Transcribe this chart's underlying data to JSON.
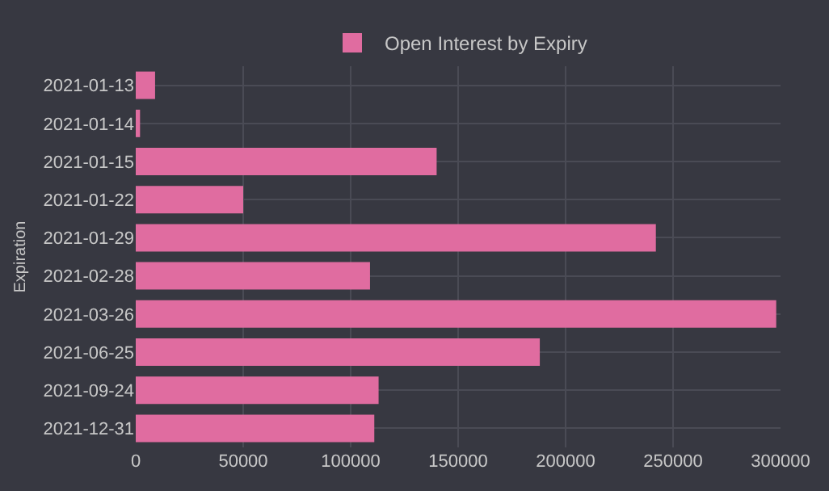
{
  "chart_data": {
    "type": "bar",
    "orientation": "horizontal",
    "ylabel": "Expiration",
    "categories": [
      "2021-01-13",
      "2021-01-14",
      "2021-01-15",
      "2021-01-22",
      "2021-01-29",
      "2021-02-28",
      "2021-03-26",
      "2021-06-25",
      "2021-09-24",
      "2021-12-31"
    ],
    "series": [
      {
        "name": "Open Interest by Expiry",
        "color": "#e06ca0",
        "values": [
          9000,
          2000,
          140000,
          50000,
          242000,
          109000,
          298000,
          188000,
          113000,
          111000
        ]
      }
    ],
    "xlim": [
      0,
      300000
    ],
    "xticks": [
      0,
      50000,
      100000,
      150000,
      200000,
      250000,
      300000
    ],
    "grid": true,
    "legend": "top"
  }
}
